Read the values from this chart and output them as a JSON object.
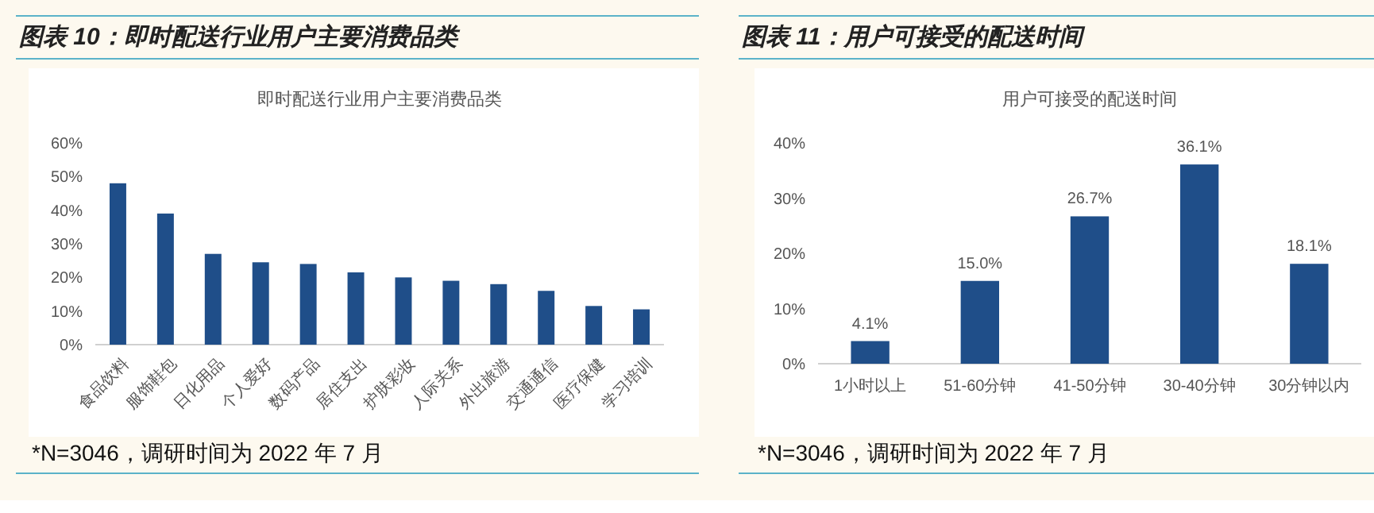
{
  "chart_data": [
    {
      "type": "bar",
      "title": "图表 10：即时配送行业用户主要消费品类",
      "subtitle": "即时配送行业用户主要消费品类",
      "annotations": [
        "*N=3046，调研时间为 2022 年 7 月"
      ],
      "categories": [
        "食品饮料",
        "服饰鞋包",
        "日化用品",
        "个人爱好",
        "数码产品",
        "居住支出",
        "护肤彩妆",
        "人际关系",
        "外出旅游",
        "交通通信",
        "医疗保健",
        "学习培训"
      ],
      "values": [
        48,
        39,
        27,
        24.5,
        24,
        21.5,
        20,
        19,
        18,
        16,
        11.5,
        10.5
      ],
      "color": "#1f4e89",
      "ylim": [
        0,
        60
      ],
      "yticks": [
        {
          "value": 0,
          "label": "0%"
        },
        {
          "value": 10,
          "label": "10%"
        },
        {
          "value": 20,
          "label": "20%"
        },
        {
          "value": 30,
          "label": "30%"
        },
        {
          "value": 40,
          "label": "40%"
        },
        {
          "value": 50,
          "label": "50%"
        },
        {
          "value": 60,
          "label": "60%"
        }
      ],
      "grid": false
    },
    {
      "type": "bar",
      "title": "图表 11：用户可接受的配送时间",
      "subtitle": "用户可接受的配送时间",
      "annotations": [
        "*N=3046，调研时间为 2022 年 7 月"
      ],
      "categories": [
        "1小时以上",
        "51-60分钟",
        "41-50分钟",
        "30-40分钟",
        "30分钟以内"
      ],
      "values": [
        4.1,
        15.0,
        26.7,
        36.1,
        18.1
      ],
      "value_labels": [
        "4.1%",
        "15.0%",
        "26.7%",
        "36.1%",
        "18.1%"
      ],
      "color": "#1f4e89",
      "ylim": [
        0,
        40
      ],
      "yticks": [
        {
          "value": 0,
          "label": "0%"
        },
        {
          "value": 10,
          "label": "10%"
        },
        {
          "value": 20,
          "label": "20%"
        },
        {
          "value": 30,
          "label": "30%"
        },
        {
          "value": 40,
          "label": "40%"
        }
      ],
      "grid": false
    }
  ]
}
